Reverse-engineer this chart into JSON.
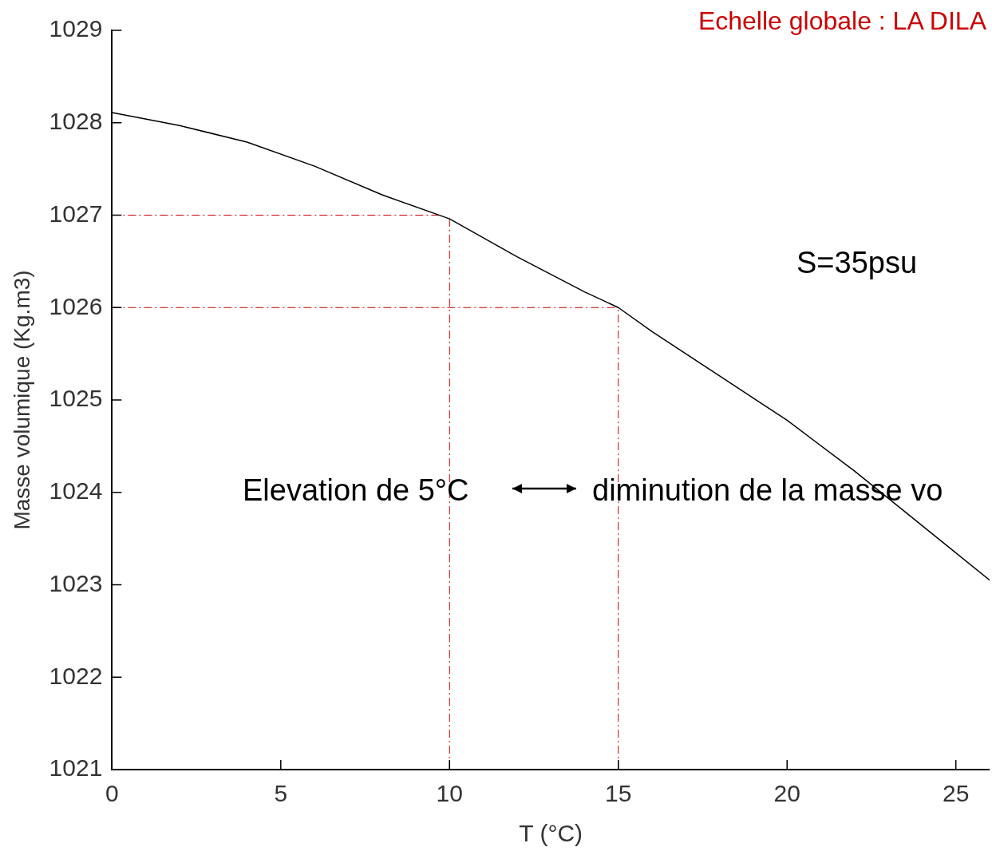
{
  "chart_data": {
    "type": "line",
    "title": "Echelle globale : LA DILA",
    "xlabel": "T (°C)",
    "ylabel": "Masse volumique (Kg.m3)",
    "x": [
      0,
      2,
      4,
      6,
      8,
      10,
      12,
      14,
      15,
      16,
      18,
      20,
      22,
      24,
      26
    ],
    "series": [
      {
        "color": "#000000",
        "values": [
          1028.11,
          1027.97,
          1027.79,
          1027.53,
          1027.22,
          1026.96,
          1026.55,
          1026.17,
          1026.0,
          1025.74,
          1025.26,
          1024.78,
          1024.23,
          1023.64,
          1023.05
        ]
      }
    ],
    "xlim": [
      0,
      26
    ],
    "xticks": [
      0,
      5,
      10,
      15,
      20,
      25
    ],
    "ylim": [
      1021,
      1029
    ],
    "yticks": [
      1021,
      1022,
      1023,
      1024,
      1025,
      1026,
      1027,
      1028,
      1029
    ],
    "ref_lines": [
      {
        "axis": "y",
        "value": 1027,
        "color": "#cc0000",
        "line_style": "dashed"
      },
      {
        "axis": "y",
        "value": 1026,
        "color": "#cc0000",
        "line_style": "dashed"
      },
      {
        "axis": "x",
        "value": 10,
        "color": "#cc0000",
        "line_style": "dashed"
      },
      {
        "axis": "x",
        "value": 15,
        "color": "#cc0000",
        "line_style": "dashed"
      }
    ],
    "annotations": [
      "S=35psu",
      "Elevation de 5°C",
      "diminution de la masse vo"
    ],
    "grid": false,
    "legend": false,
    "marker": "none",
    "line_style": "solid"
  }
}
